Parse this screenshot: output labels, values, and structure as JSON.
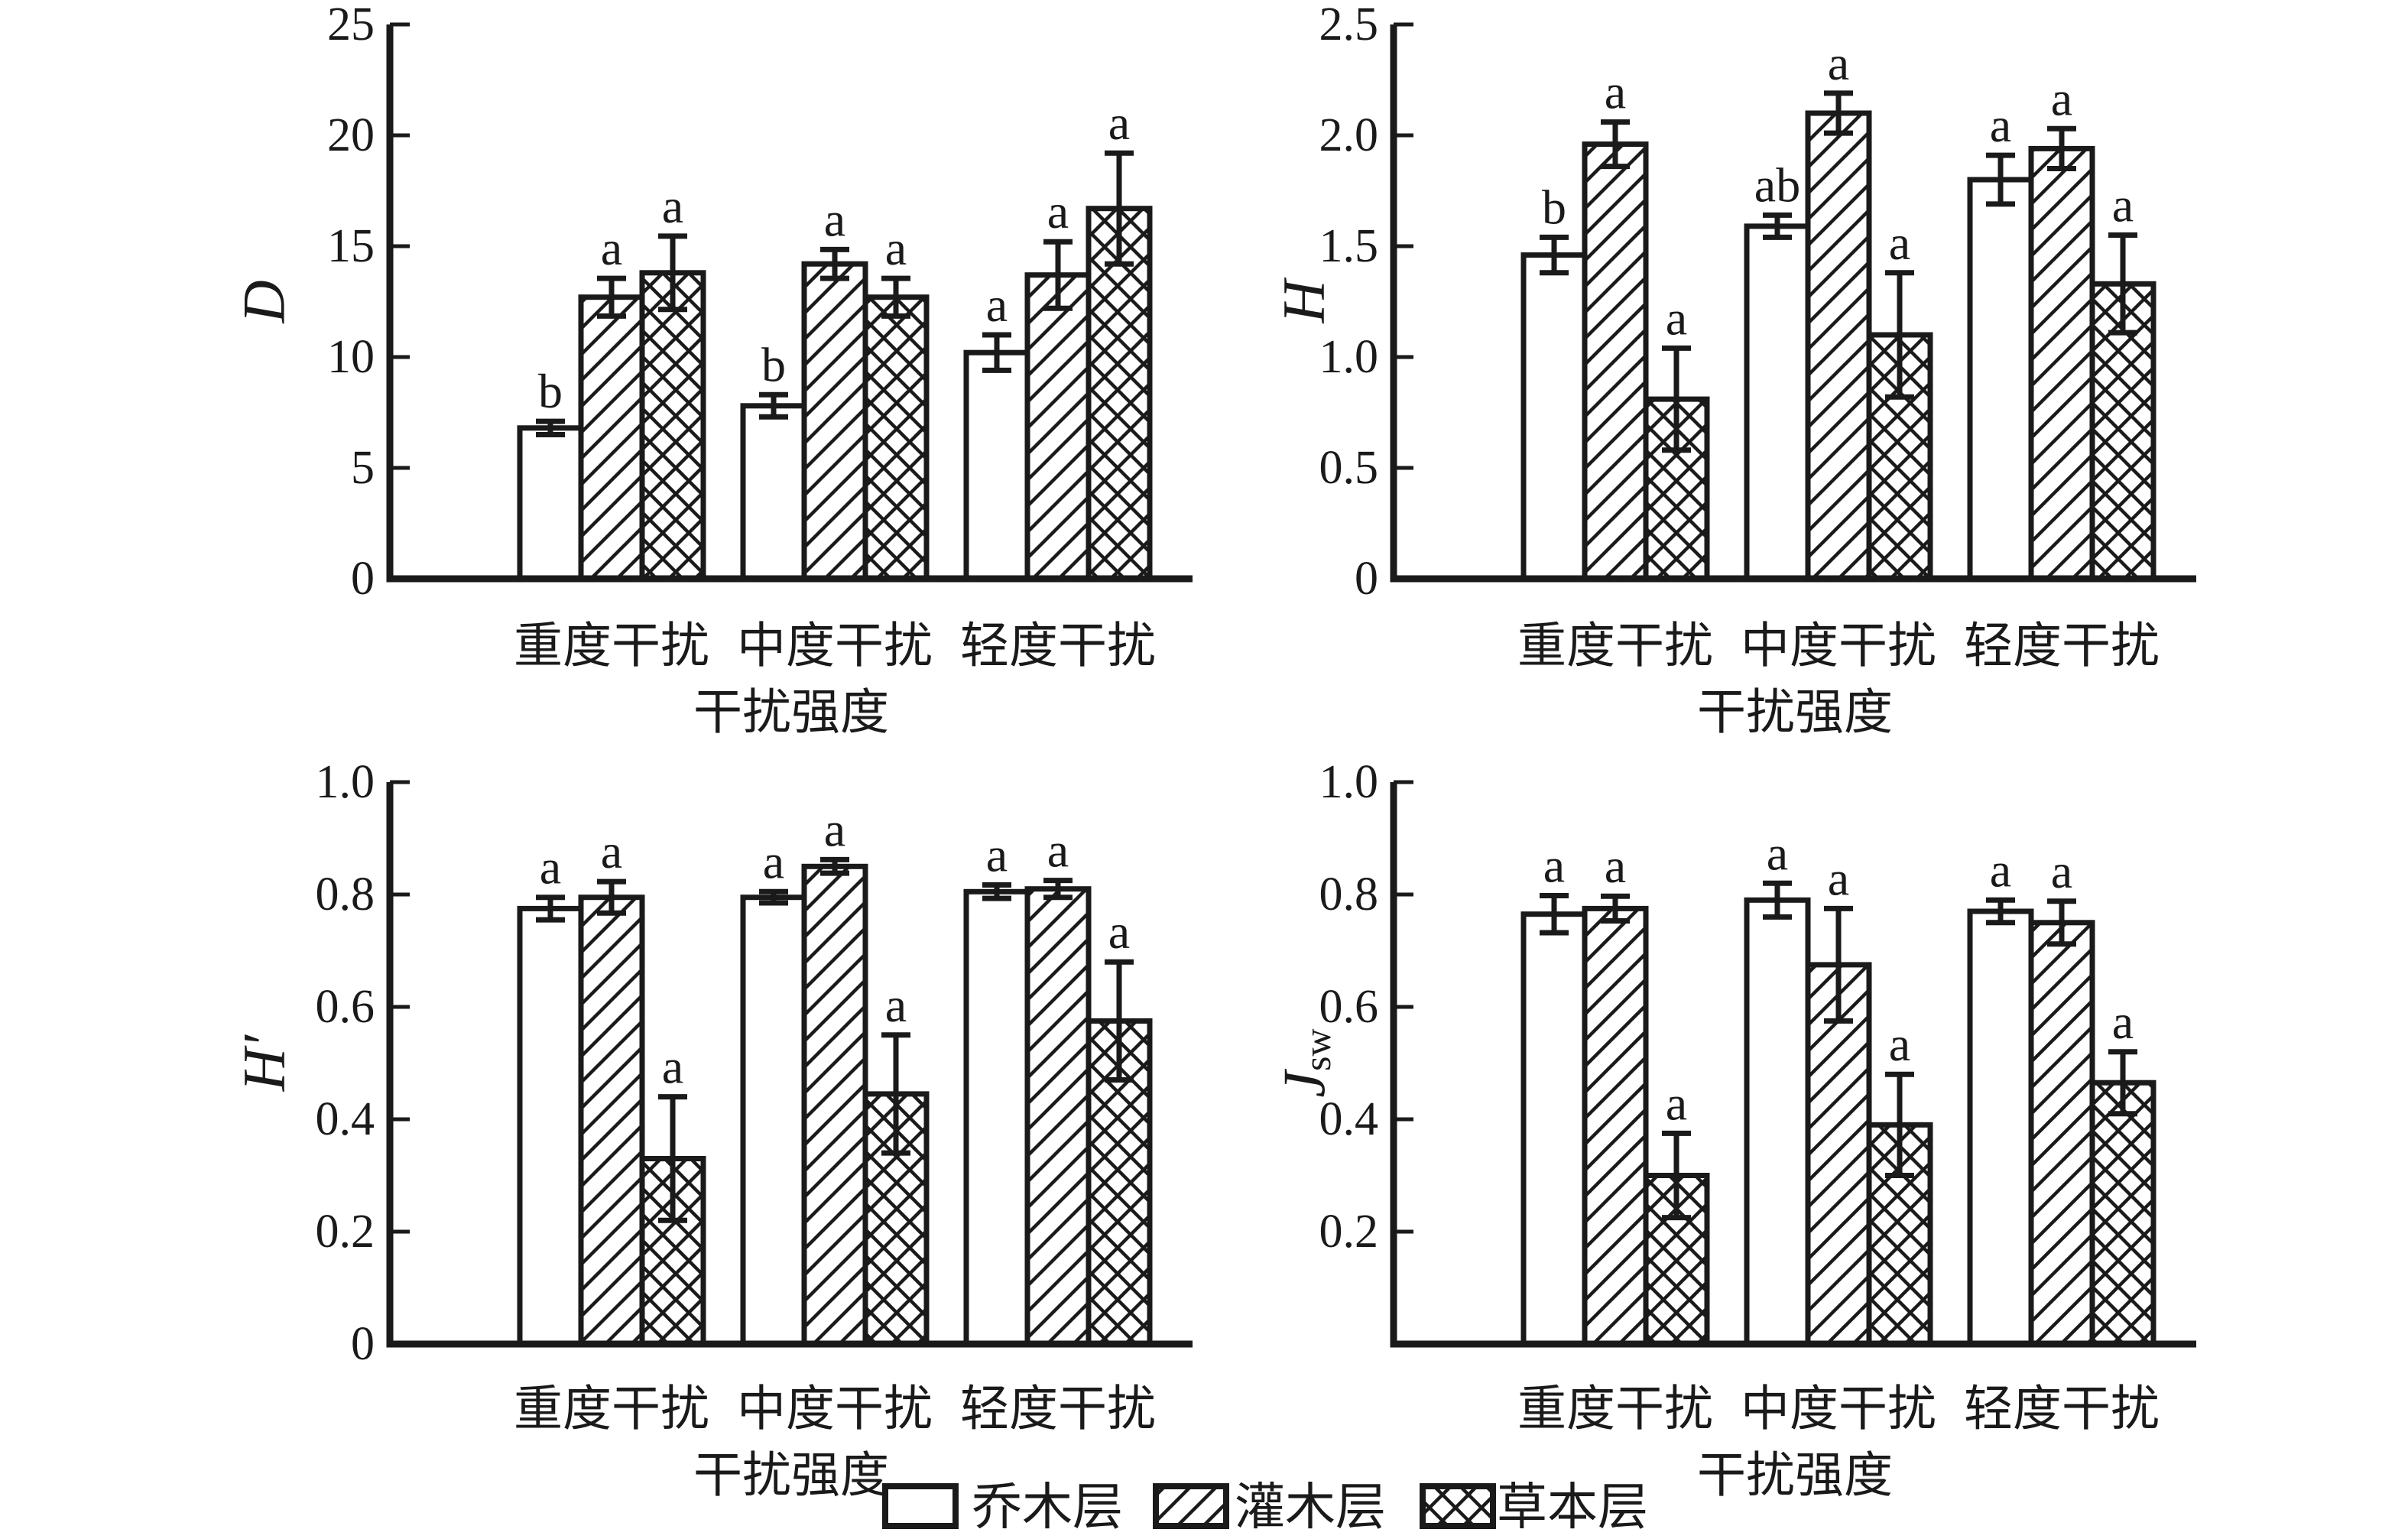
{
  "figure": {
    "x_axis_title": "干扰强度",
    "categories": [
      "重度干扰",
      "中度干扰",
      "轻度干扰"
    ],
    "legend": [
      {
        "label": "乔木层",
        "pattern": "open"
      },
      {
        "label": "灌木层",
        "pattern": "diagonal"
      },
      {
        "label": "草本层",
        "pattern": "crosshatch"
      }
    ],
    "colors": {
      "ink": "#1a1a1a",
      "background": "#ffffff"
    }
  },
  "chart_data": [
    {
      "id": "D",
      "type": "bar",
      "ylabel": "D",
      "ylabel_sub": "",
      "ylim": [
        0,
        25
      ],
      "yticks": [
        0,
        5,
        10,
        15,
        20,
        25
      ],
      "ytick_labels": [
        "0",
        "5",
        "10",
        "15",
        "20",
        "25"
      ],
      "xlabel": "干扰强度",
      "categories": [
        "重度干扰",
        "中度干扰",
        "轻度干扰"
      ],
      "legend_position": "bottom-shared",
      "grid": false,
      "series": [
        {
          "name": "乔木层",
          "pattern": "open",
          "values": [
            6.8,
            7.8,
            10.2
          ],
          "errors": [
            0.3,
            0.5,
            0.8
          ],
          "letters": [
            "b",
            "b",
            "a"
          ]
        },
        {
          "name": "灌木层",
          "pattern": "diagonal",
          "values": [
            12.7,
            14.2,
            13.7
          ],
          "errors": [
            0.85,
            0.65,
            1.5
          ],
          "letters": [
            "a",
            "a",
            "a"
          ]
        },
        {
          "name": "草本层",
          "pattern": "crosshatch",
          "values": [
            13.8,
            12.7,
            16.7
          ],
          "errors": [
            1.65,
            0.85,
            2.5
          ],
          "letters": [
            "a",
            "a",
            "a"
          ]
        }
      ]
    },
    {
      "id": "H",
      "type": "bar",
      "ylabel": "H",
      "ylabel_sub": "",
      "ylim": [
        0,
        2.5
      ],
      "yticks": [
        0,
        0.5,
        1.0,
        1.5,
        2.0,
        2.5
      ],
      "ytick_labels": [
        "0",
        "0.5",
        "1.0",
        "1.5",
        "2.0",
        "2.5"
      ],
      "xlabel": "干扰强度",
      "categories": [
        "重度干扰",
        "中度干扰",
        "轻度干扰"
      ],
      "legend_position": "bottom-shared",
      "grid": false,
      "series": [
        {
          "name": "乔木层",
          "pattern": "open",
          "values": [
            1.46,
            1.59,
            1.8
          ],
          "errors": [
            0.08,
            0.05,
            0.11
          ],
          "letters": [
            "b",
            "ab",
            "a"
          ]
        },
        {
          "name": "灌木层",
          "pattern": "diagonal",
          "values": [
            1.96,
            2.1,
            1.94
          ],
          "errors": [
            0.1,
            0.09,
            0.09
          ],
          "letters": [
            "a",
            "a",
            "a"
          ]
        },
        {
          "name": "草本层",
          "pattern": "crosshatch",
          "values": [
            0.81,
            1.1,
            1.33
          ],
          "errors": [
            0.23,
            0.28,
            0.22
          ],
          "letters": [
            "a",
            "a",
            "a"
          ]
        }
      ]
    },
    {
      "id": "H-prime",
      "type": "bar",
      "ylabel": "H′",
      "ylabel_sub": "",
      "ylim": [
        0,
        1.0
      ],
      "yticks": [
        0,
        0.2,
        0.4,
        0.6,
        0.8,
        1.0
      ],
      "ytick_labels": [
        "0",
        "0.2",
        "0.4",
        "0.6",
        "0.8",
        "1.0"
      ],
      "xlabel": "干扰强度",
      "categories": [
        "重度干扰",
        "中度干扰",
        "轻度干扰"
      ],
      "legend_position": "bottom-shared",
      "grid": false,
      "series": [
        {
          "name": "乔木层",
          "pattern": "open",
          "values": [
            0.775,
            0.795,
            0.805
          ],
          "errors": [
            0.02,
            0.01,
            0.012
          ],
          "letters": [
            "a",
            "a",
            "a"
          ]
        },
        {
          "name": "灌木层",
          "pattern": "diagonal",
          "values": [
            0.795,
            0.85,
            0.81
          ],
          "errors": [
            0.028,
            0.012,
            0.015
          ],
          "letters": [
            "a",
            "a",
            "a"
          ]
        },
        {
          "name": "草本层",
          "pattern": "crosshatch",
          "values": [
            0.33,
            0.445,
            0.575
          ],
          "errors": [
            0.11,
            0.105,
            0.105
          ],
          "letters": [
            "a",
            "a",
            "a"
          ]
        }
      ]
    },
    {
      "id": "Jsw",
      "type": "bar",
      "ylabel": "J",
      "ylabel_sub": "sw",
      "ylim": [
        0,
        1.0
      ],
      "yticks": [
        0,
        0.2,
        0.4,
        0.6,
        0.8,
        1.0
      ],
      "ytick_labels": [
        "",
        "0.2",
        "0.4",
        "0.6",
        "0.8",
        "1.0"
      ],
      "xlabel": "干扰强度",
      "categories": [
        "重度干扰",
        "中度干扰",
        "轻度干扰"
      ],
      "legend_position": "bottom-shared",
      "grid": false,
      "series": [
        {
          "name": "乔木层",
          "pattern": "open",
          "values": [
            0.765,
            0.79,
            0.77
          ],
          "errors": [
            0.033,
            0.03,
            0.02
          ],
          "letters": [
            "a",
            "a",
            "a"
          ]
        },
        {
          "name": "灌木层",
          "pattern": "diagonal",
          "values": [
            0.775,
            0.675,
            0.75
          ],
          "errors": [
            0.022,
            0.1,
            0.038
          ],
          "letters": [
            "a",
            "a",
            "a"
          ]
        },
        {
          "name": "草本层",
          "pattern": "crosshatch",
          "values": [
            0.3,
            0.39,
            0.465
          ],
          "errors": [
            0.075,
            0.09,
            0.055
          ],
          "letters": [
            "a",
            "a",
            "a"
          ]
        }
      ]
    }
  ]
}
